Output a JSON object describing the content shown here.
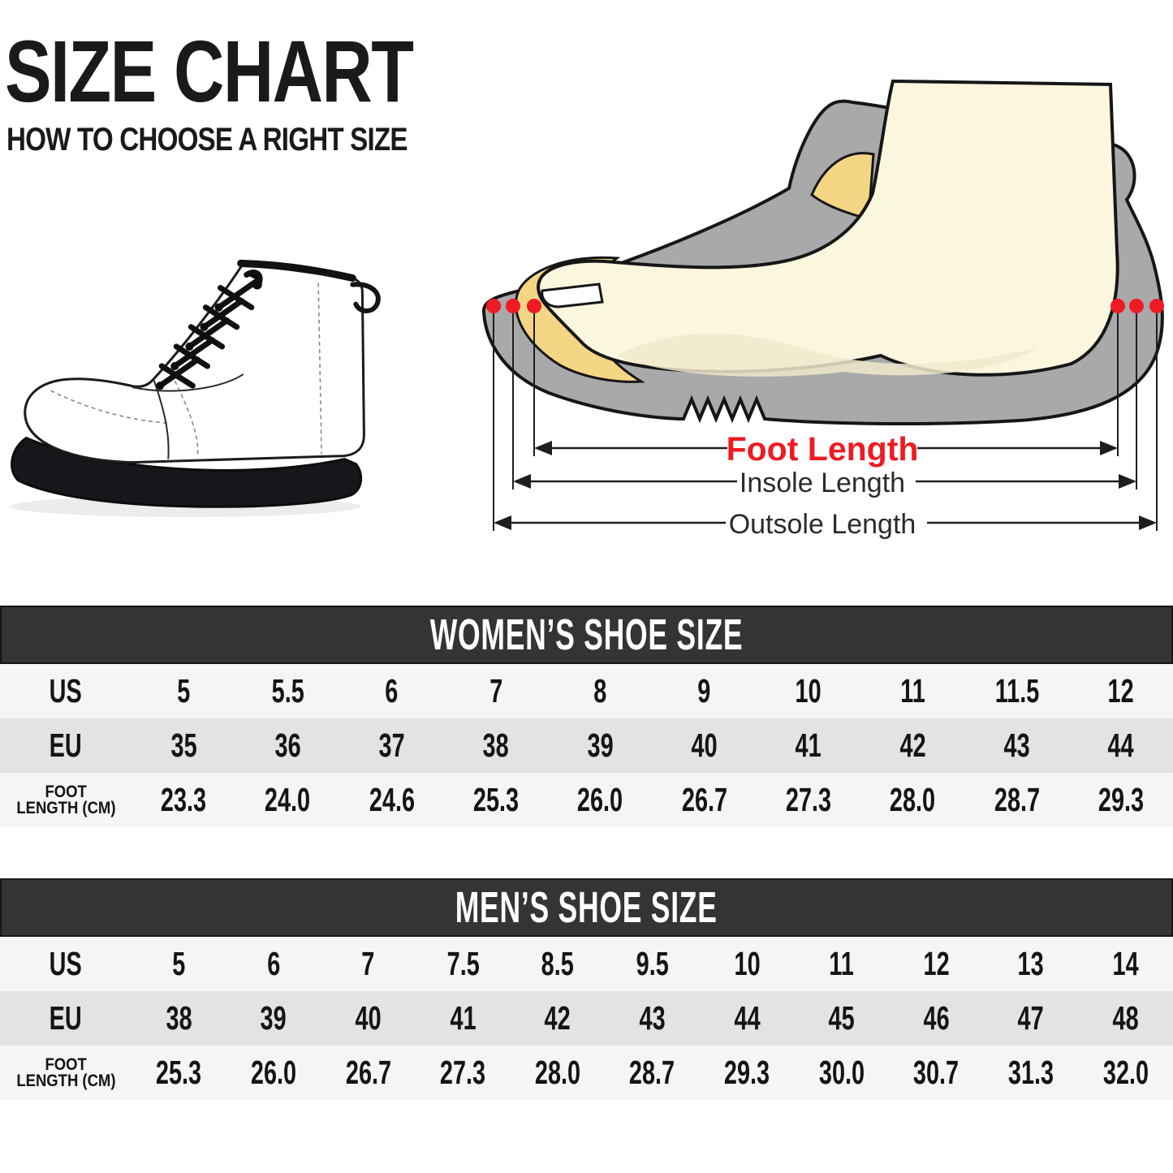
{
  "header": {
    "title": "SIZE CHART",
    "subtitle": "HOW TO CHOOSE A RIGHT SIZE"
  },
  "diagram": {
    "labels": {
      "foot_length": "Foot Length",
      "insole_length": "Insole Length",
      "outsole_length": "Outsole Length"
    },
    "colors": {
      "accent_red": "#ee1b24",
      "shoe_gray": "#a9a9a9",
      "insole_yellow": "#f4d584",
      "foot_cream": "#fbf6de",
      "outline_dark": "#1a1a1a"
    }
  },
  "tables_meta": {
    "header_bg": "#343434",
    "row_light": "#f5f5f4",
    "row_dark": "#e3e3e2"
  },
  "chart_data": [
    {
      "type": "table",
      "title": "WOMEN’S SHOE SIZE",
      "row_header_lines": [
        [
          "US"
        ],
        [
          "EU"
        ],
        [
          "FOOT",
          "LENGTH (CM)"
        ]
      ],
      "rows": [
        [
          "5",
          "5.5",
          "6",
          "7",
          "8",
          "9",
          "10",
          "11",
          "11.5",
          "12"
        ],
        [
          "35",
          "36",
          "37",
          "38",
          "39",
          "40",
          "41",
          "42",
          "43",
          "44"
        ],
        [
          "23.3",
          "24.0",
          "24.6",
          "25.3",
          "26.0",
          "26.7",
          "27.3",
          "28.0",
          "28.7",
          "29.3"
        ]
      ]
    },
    {
      "type": "table",
      "title": "MEN’S SHOE SIZE",
      "row_header_lines": [
        [
          "US"
        ],
        [
          "EU"
        ],
        [
          "FOOT",
          "LENGTH (CM)"
        ]
      ],
      "rows": [
        [
          "5",
          "6",
          "7",
          "7.5",
          "8.5",
          "9.5",
          "10",
          "11",
          "12",
          "13",
          "14"
        ],
        [
          "38",
          "39",
          "40",
          "41",
          "42",
          "43",
          "44",
          "45",
          "46",
          "47",
          "48"
        ],
        [
          "25.3",
          "26.0",
          "26.7",
          "27.3",
          "28.0",
          "28.7",
          "29.3",
          "30.0",
          "30.7",
          "31.3",
          "32.0"
        ]
      ]
    }
  ]
}
